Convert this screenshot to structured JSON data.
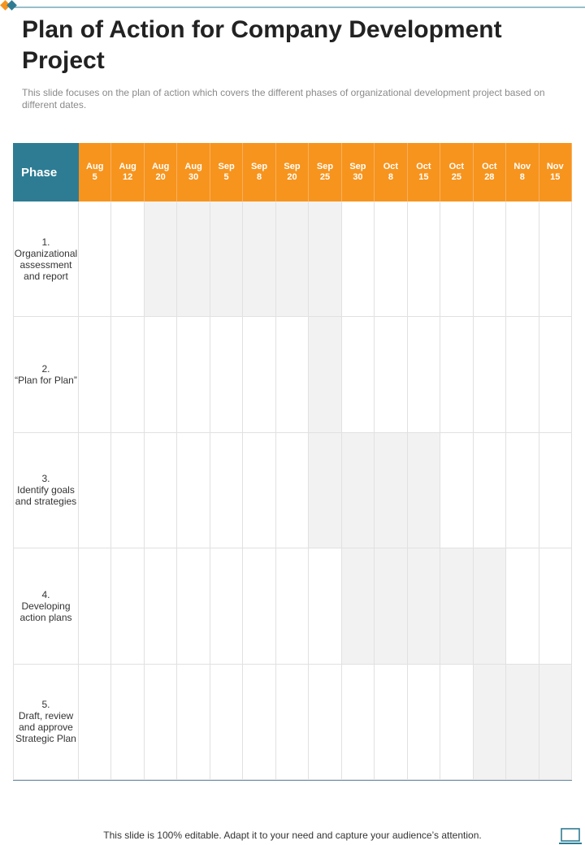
{
  "title": "Plan of Action for Company Development Project",
  "subtitle": "This slide focuses on the plan of action which covers the different phases of organizational development project based on different dates.",
  "table": {
    "phase_header": "Phase",
    "dates": [
      {
        "month": "Aug",
        "day": "5"
      },
      {
        "month": "Aug",
        "day": "12"
      },
      {
        "month": "Aug",
        "day": "20"
      },
      {
        "month": "Aug",
        "day": "30"
      },
      {
        "month": "Sep",
        "day": "5"
      },
      {
        "month": "Sep",
        "day": "8"
      },
      {
        "month": "Sep",
        "day": "20"
      },
      {
        "month": "Sep",
        "day": "25"
      },
      {
        "month": "Sep",
        "day": "30"
      },
      {
        "month": "Oct",
        "day": "8"
      },
      {
        "month": "Oct",
        "day": "15"
      },
      {
        "month": "Oct",
        "day": "25"
      },
      {
        "month": "Oct",
        "day": "28"
      },
      {
        "month": "Nov",
        "day": "8"
      },
      {
        "month": "Nov",
        "day": "15"
      }
    ],
    "phases": [
      "1.\nOrganizational\nassessment\nand report",
      "2.\n“Plan for Plan”",
      "3.\nIdentify goals\nand strategies",
      "4.\nDeveloping\naction plans",
      "5.\nDraft, review\nand approve\nStrategic Plan"
    ]
  },
  "footer": "This slide is 100% editable. Adapt it to your need and capture your audience’s attention."
}
